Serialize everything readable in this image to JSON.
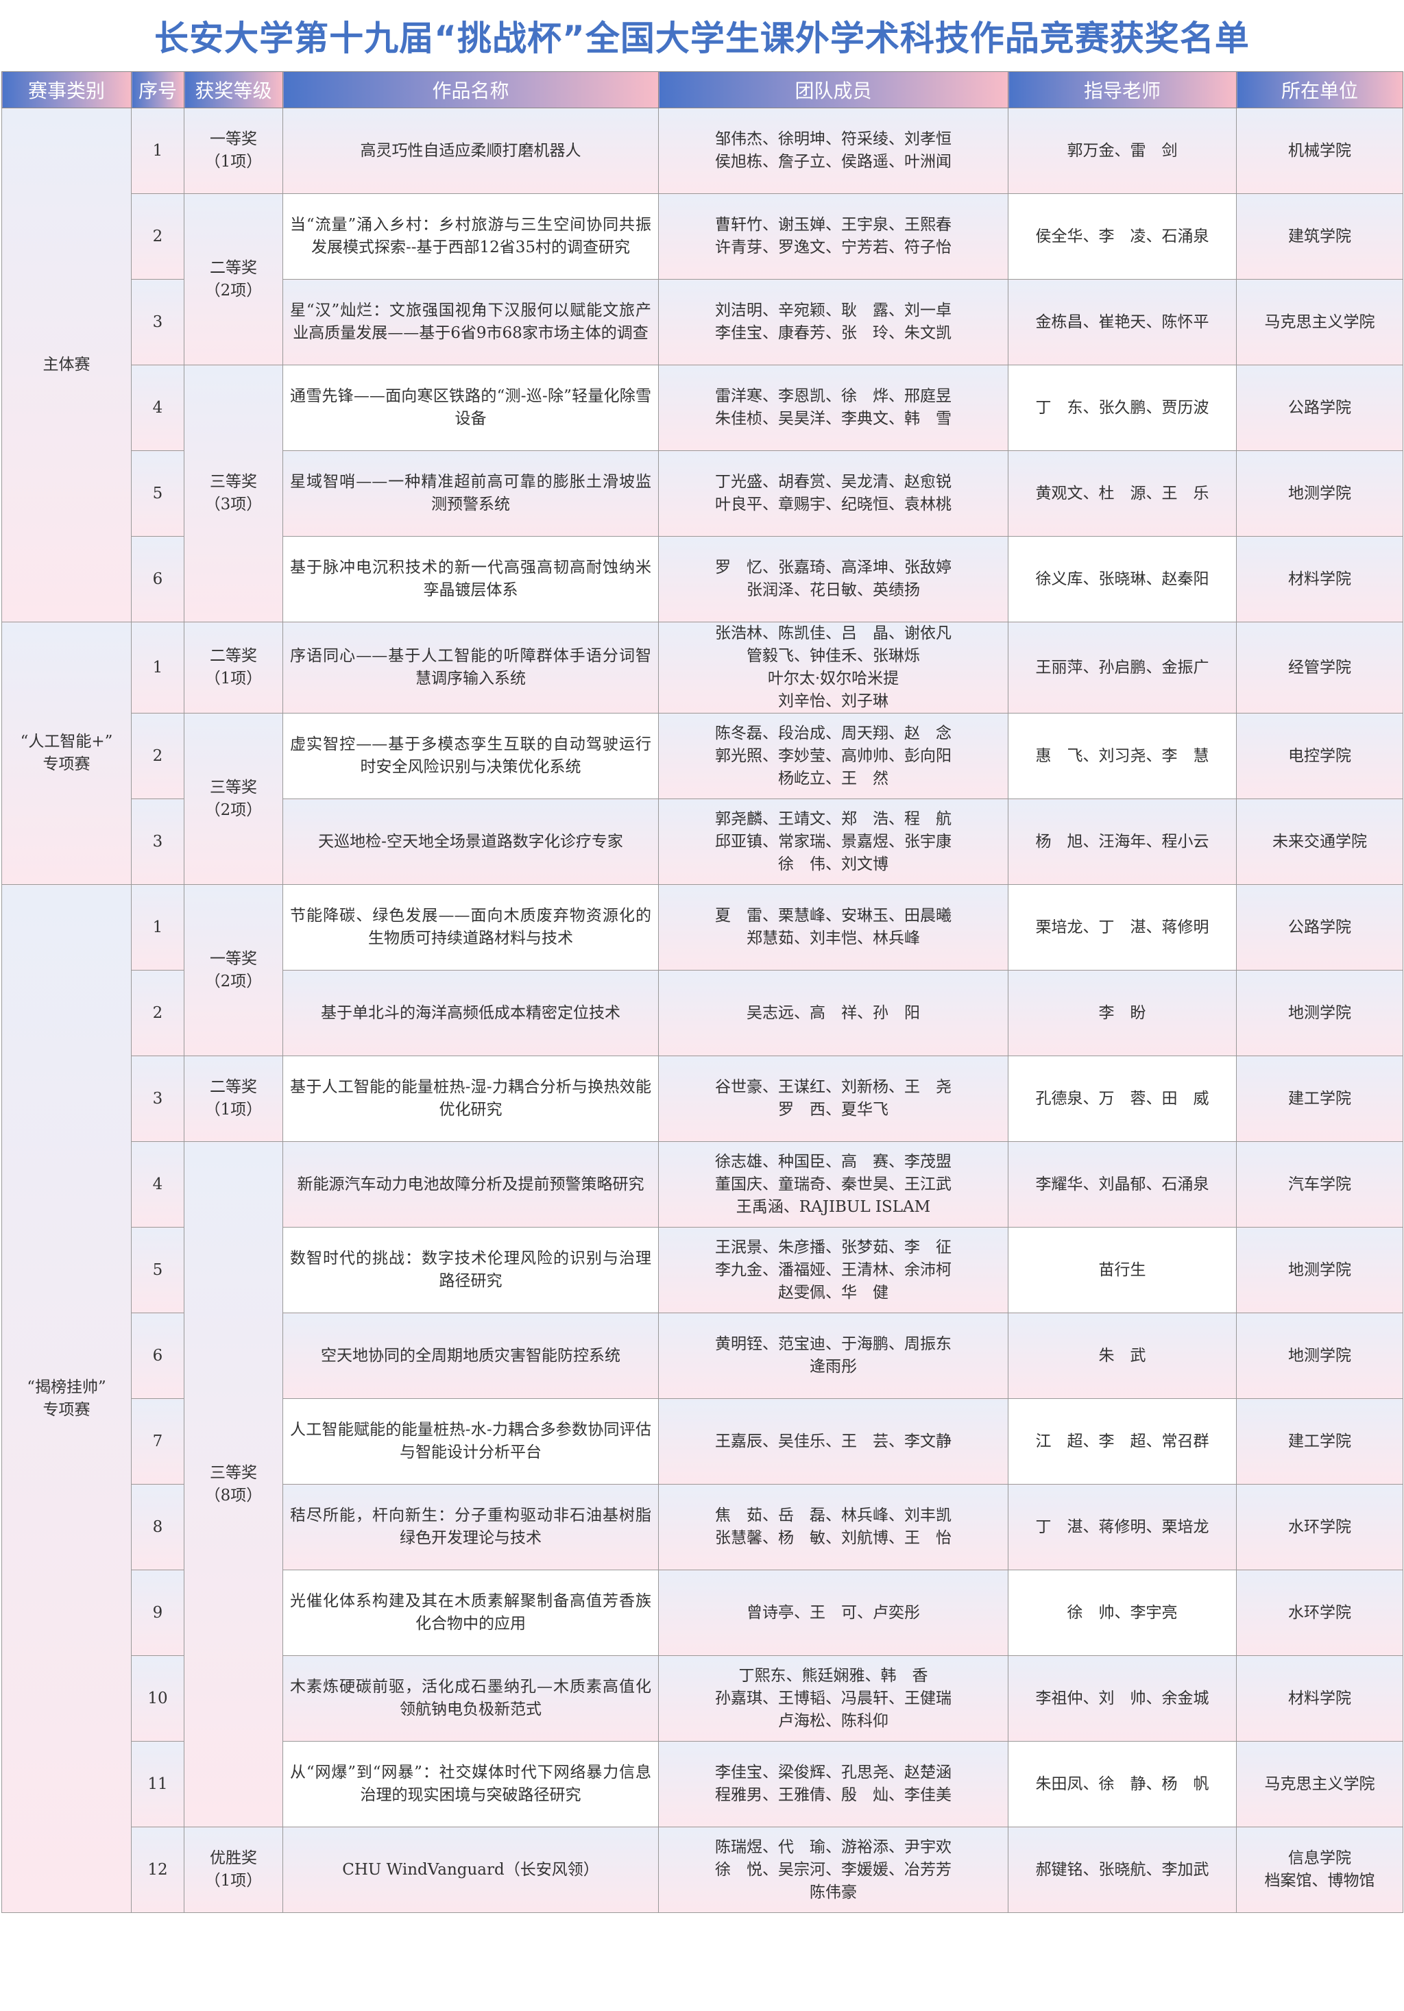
{
  "title": "长安大学第十九届“挑战杯”全国大学生课外学术科技作品竞赛获奖名单",
  "colors": {
    "title": "#4472c4",
    "header_start": "#4a74c9",
    "header_end": "#f8bcc8",
    "cell_top": "#eaeef8",
    "cell_bottom": "#fce8ee"
  },
  "headers": [
    "赛事类别",
    "序号",
    "获奖等级",
    "作品名称",
    "团队成员",
    "指导老师",
    "所在单位"
  ],
  "categories": [
    {
      "name": [
        "主体赛"
      ],
      "awards": [
        {
          "level": [
            "一等奖",
            "（1项）"
          ],
          "entries": [
            {
              "no": "1",
              "work": "高灵巧性自适应柔顺打磨机器人",
              "members": [
                "邹伟杰、徐明坤、符采绫、刘孝恒",
                "侯旭栋、詹子立、侯路遥、叶洲闻"
              ],
              "advisors": "郭万金、雷　剑",
              "unit": [
                "机械学院"
              ]
            }
          ]
        },
        {
          "level": [
            "二等奖",
            "（2项）"
          ],
          "entries": [
            {
              "no": "2",
              "work": "当“流量”涌入乡村：乡村旅游与三生空间协同共振发展模式探索--基于西部12省35村的调查研究",
              "members": [
                "曹轩竹、谢玉婵、王宇泉、王熙春",
                "许青芽、罗逸文、宁芳若、符子怡"
              ],
              "advisors": "侯全华、李　凌、石涌泉",
              "unit": [
                "建筑学院"
              ]
            },
            {
              "no": "3",
              "work": "星“汉”灿烂：文旅强国视角下汉服何以赋能文旅产业高质量发展——基于6省9市68家市场主体的调查",
              "members": [
                "刘洁明、辛宛颖、耿　露、刘一卓",
                "李佳宝、康春芳、张　玲、朱文凯"
              ],
              "advisors": "金栋昌、崔艳天、陈怀平",
              "unit": [
                "马克思主义学院"
              ]
            }
          ]
        },
        {
          "level": [
            "三等奖",
            "（3项）"
          ],
          "entries": [
            {
              "no": "4",
              "work": "通雪先锋——面向寒区铁路的“测-巡-除”轻量化除雪设备",
              "members": [
                "雷洋寒、李恩凯、徐　烨、邢庭昱",
                "朱佳桢、吴昊洋、李典文、韩　雪"
              ],
              "advisors": "丁　东、张久鹏、贾历波",
              "unit": [
                "公路学院"
              ]
            },
            {
              "no": "5",
              "work": "星域智哨——一种精准超前高可靠的膨胀土滑坡监测预警系统",
              "members": [
                "丁光盛、胡春赏、吴龙清、赵愈锐",
                "叶良平、章赐宇、纪晓恒、袁林桃"
              ],
              "advisors": "黄观文、杜　源、王　乐",
              "unit": [
                "地测学院"
              ]
            },
            {
              "no": "6",
              "work": "基于脉冲电沉积技术的新一代高强高韧高耐蚀纳米孪晶镀层体系",
              "members": [
                "罗　忆、张嘉琦、高泽坤、张敌婷",
                "张润泽、花日敏、英绩扬"
              ],
              "advisors": "徐义库、张晓琳、赵秦阳",
              "unit": [
                "材料学院"
              ]
            }
          ]
        }
      ]
    },
    {
      "name": [
        "“人工智能+”",
        "专项赛"
      ],
      "awards": [
        {
          "level": [
            "二等奖",
            "（1项）"
          ],
          "entries": [
            {
              "no": "1",
              "work": "序语同心——基于人工智能的听障群体手语分词智慧调序输入系统",
              "members": [
                "张浩林、陈凯佳、吕　晶、谢依凡",
                "管毅飞、钟佳禾、张琳烁",
                "叶尔太·奴尔哈米提",
                "刘辛怡、刘子琳"
              ],
              "advisors": "王丽萍、孙启鹏、金振广",
              "unit": [
                "经管学院"
              ]
            }
          ]
        },
        {
          "level": [
            "三等奖",
            "（2项）"
          ],
          "entries": [
            {
              "no": "2",
              "work": "虚实智控——基于多模态孪生互联的自动驾驶运行时安全风险识别与决策优化系统",
              "members": [
                "陈冬磊、段治成、周天翔、赵　念",
                "郭光照、李妙莹、高帅帅、彭向阳",
                "杨屹立、王　然"
              ],
              "advisors": "惠　飞、刘习尧、李　慧",
              "unit": [
                "电控学院"
              ]
            },
            {
              "no": "3",
              "work": "天巡地检-空天地全场景道路数字化诊疗专家",
              "members": [
                "郭尧麟、王靖文、郑　浩、程　航",
                "邱亚镇、常家瑞、景嘉煜、张宇康",
                "徐　伟、刘文博"
              ],
              "advisors": "杨　旭、汪海年、程小云",
              "unit": [
                "未来交通学院"
              ]
            }
          ]
        }
      ]
    },
    {
      "name": [
        "“揭榜挂帅”",
        "专项赛"
      ],
      "awards": [
        {
          "level": [
            "一等奖",
            "（2项）"
          ],
          "entries": [
            {
              "no": "1",
              "work": "节能降碳、绿色发展——面向木质废弃物资源化的生物质可持续道路材料与技术",
              "members": [
                "夏　雷、栗慧峰、安琳玉、田晨曦",
                "郑慧茹、刘丰恺、林兵峰"
              ],
              "advisors": "栗培龙、丁　湛、蒋修明",
              "unit": [
                "公路学院"
              ]
            },
            {
              "no": "2",
              "work": "基于单北斗的海洋高频低成本精密定位技术",
              "members": [
                "吴志远、高　祥、孙　阳"
              ],
              "advisors": "李　盼",
              "unit": [
                "地测学院"
              ]
            }
          ]
        },
        {
          "level": [
            "二等奖",
            "（1项）"
          ],
          "entries": [
            {
              "no": "3",
              "work": "基于人工智能的能量桩热-湿-力耦合分析与换热效能优化研究",
              "members": [
                "谷世豪、王谋红、刘新杨、王　尧",
                "罗　西、夏华飞"
              ],
              "advisors": "孔德泉、万　蓉、田　威",
              "unit": [
                "建工学院"
              ]
            }
          ]
        },
        {
          "level": [
            "三等奖",
            "（8项）"
          ],
          "entries": [
            {
              "no": "4",
              "work": "新能源汽车动力电池故障分析及提前预警策略研究",
              "members": [
                "徐志雄、种国臣、高　赛、李茂盟",
                "董国庆、童瑞奇、秦世昊、王江武",
                "王禹涵、RAJIBUL ISLAM"
              ],
              "advisors": "李耀华、刘晶郁、石涌泉",
              "unit": [
                "汽车学院"
              ]
            },
            {
              "no": "5",
              "work": "数智时代的挑战：数字技术伦理风险的识别与治理路径研究",
              "members": [
                "王泯景、朱彦播、张梦茹、李　征",
                "李九金、潘福娅、王清林、余沛柯",
                "赵雯佩、华　健"
              ],
              "advisors": "苗行生",
              "unit": [
                "地测学院"
              ]
            },
            {
              "no": "6",
              "work": "空天地协同的全周期地质灾害智能防控系统",
              "members": [
                "黄明铚、范宝迪、于海鹏、周振东",
                "逄雨彤"
              ],
              "advisors": "朱　武",
              "unit": [
                "地测学院"
              ]
            },
            {
              "no": "7",
              "work": "人工智能赋能的能量桩热-水-力耦合多参数协同评估与智能设计分析平台",
              "members": [
                "王嘉辰、吴佳乐、王　芸、李文静"
              ],
              "advisors": "江　超、李　超、常召群",
              "unit": [
                "建工学院"
              ]
            },
            {
              "no": "8",
              "work": "秸尽所能，杆向新生：分子重构驱动非石油基树脂绿色开发理论与技术",
              "members": [
                "焦　茹、岳　磊、林兵峰、刘丰凯",
                "张慧馨、杨　敏、刘航博、王　怡"
              ],
              "advisors": "丁　湛、蒋修明、栗培龙",
              "unit": [
                "水环学院"
              ]
            },
            {
              "no": "9",
              "work": "光催化体系构建及其在木质素解聚制备高值芳香族化合物中的应用",
              "members": [
                "曾诗亭、王　可、卢奕彤"
              ],
              "advisors": "徐　帅、李宇亮",
              "unit": [
                "水环学院"
              ]
            },
            {
              "no": "10",
              "work": "木素炼硬碳前驱，活化成石墨纳孔—木质素高值化领航钠电负极新范式",
              "members": [
                "丁熙东、熊廷娴雅、韩　香",
                "孙嘉琪、王博韬、冯晨轩、王健瑞",
                "卢海松、陈科仰"
              ],
              "advisors": "李祖仲、刘　帅、余金城",
              "unit": [
                "材料学院"
              ]
            },
            {
              "no": "11",
              "work": "从“网爆”到“网暴”：社交媒体时代下网络暴力信息治理的现实困境与突破路径研究",
              "members": [
                "李佳宝、梁俊辉、孔思尧、赵楚涵",
                "程雅男、王雅倩、殷　灿、李佳美"
              ],
              "advisors": "朱田凤、徐　静、杨　帆",
              "unit": [
                "马克思主义学院"
              ]
            }
          ]
        },
        {
          "level": [
            "优胜奖",
            "（1项）"
          ],
          "entries": [
            {
              "no": "12",
              "work": "CHU WindVanguard（长安风领）",
              "members": [
                "陈瑞煜、代　瑜、游裕添、尹宇欢",
                "徐　悦、吴宗河、李媛媛、冶芳芳",
                "陈伟豪"
              ],
              "advisors": "郝键铭、张晓航、李加武",
              "unit": [
                "信息学院",
                "档案馆、博物馆"
              ]
            }
          ]
        }
      ]
    }
  ]
}
